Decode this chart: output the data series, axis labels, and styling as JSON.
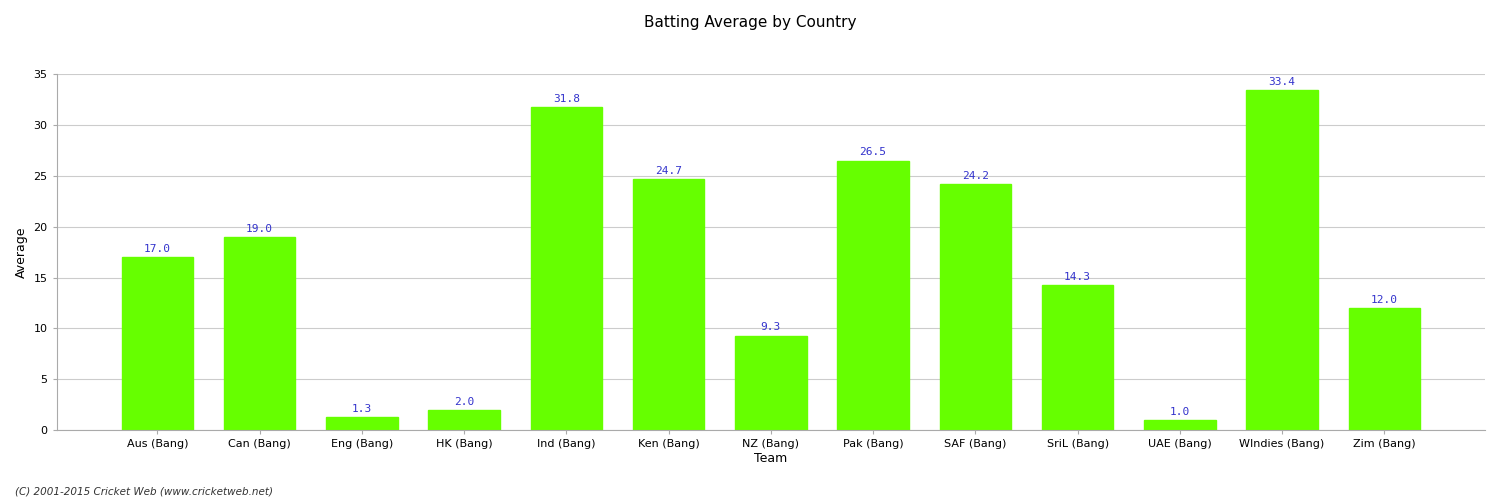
{
  "categories": [
    "Aus (Bang)",
    "Can (Bang)",
    "Eng (Bang)",
    "HK (Bang)",
    "Ind (Bang)",
    "Ken (Bang)",
    "NZ (Bang)",
    "Pak (Bang)",
    "SAF (Bang)",
    "SriL (Bang)",
    "UAE (Bang)",
    "WIndies (Bang)",
    "Zim (Bang)"
  ],
  "values": [
    17.0,
    19.0,
    1.3,
    2.0,
    31.8,
    24.7,
    9.3,
    26.5,
    24.2,
    14.3,
    1.0,
    33.4,
    12.0
  ],
  "bar_color": "#66ff00",
  "bar_edge_color": "#66ff00",
  "label_color": "#3333cc",
  "title": "Batting Average by Country",
  "xlabel": "Team",
  "ylabel": "Average",
  "ylim": [
    0,
    35
  ],
  "yticks": [
    0,
    5,
    10,
    15,
    20,
    25,
    30,
    35
  ],
  "background_color": "#ffffff",
  "grid_color": "#cccccc",
  "title_fontsize": 11,
  "axis_label_fontsize": 9,
  "tick_fontsize": 8,
  "value_label_fontsize": 8,
  "footer_text": "(C) 2001-2015 Cricket Web (www.cricketweb.net)"
}
